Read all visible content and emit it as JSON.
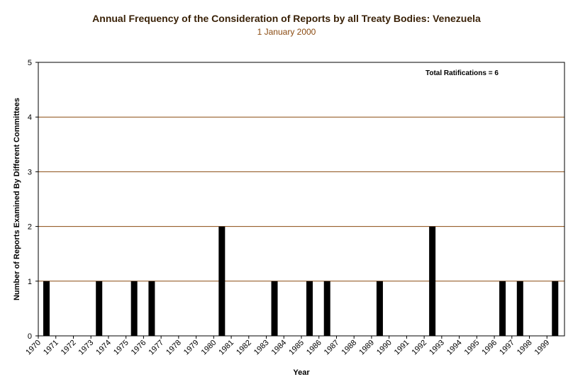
{
  "chart_data": {
    "type": "bar",
    "title": "Annual Frequency of the Consideration of Reports by all Treaty Bodies: Venezuela",
    "subtitle": "1 January 2000",
    "xlabel": "Year",
    "ylabel": "Number of Reports Examined By Different Committees",
    "annotation": "Total Ratifications = 6",
    "ylim": [
      0,
      5
    ],
    "yticks": [
      "0",
      "1",
      "2",
      "3",
      "4",
      "5"
    ],
    "categories": [
      "1970",
      "1971",
      "1972",
      "1973",
      "1974",
      "1975",
      "1976",
      "1977",
      "1978",
      "1979",
      "1980",
      "1981",
      "1982",
      "1983",
      "1984",
      "1985",
      "1986",
      "1987",
      "1988",
      "1989",
      "1990",
      "1991",
      "1992",
      "1993",
      "1994",
      "1995",
      "1996",
      "1997",
      "1998",
      "1999"
    ],
    "values": [
      1,
      0,
      0,
      1,
      0,
      1,
      1,
      0,
      0,
      0,
      2,
      0,
      0,
      1,
      0,
      1,
      1,
      0,
      0,
      1,
      0,
      0,
      2,
      0,
      0,
      0,
      1,
      1,
      0,
      1
    ],
    "colors": {
      "bar": "#000000",
      "grid": "#8a4a10",
      "axis": "#000000",
      "title": "#3a2208",
      "subtitle": "#8a4a10"
    }
  }
}
